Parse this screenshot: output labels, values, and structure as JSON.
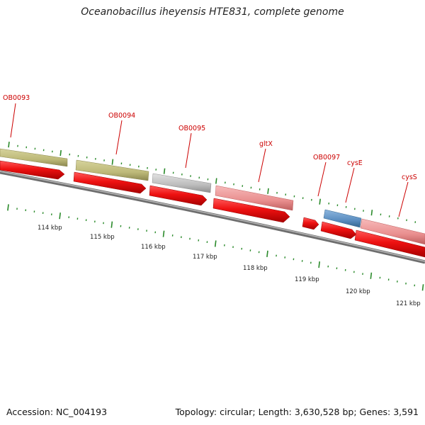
{
  "title": "Oceanobacillus iheyensis HTE831, complete genome",
  "footer": {
    "accession": "Accession: NC_004193",
    "summary": "Topology: circular; Length: 3,630,528 bp; Genes: 3,591"
  },
  "colors": {
    "backbone": "#8a8a8a",
    "cds_arrow": "#ee1111",
    "label": "#cc0000",
    "tick": "#2a8a2a",
    "olive": "#bdb978",
    "gray": "#bcbcbc",
    "pink": "#e98f8f",
    "blue": "#5a8dc0"
  },
  "ruler": {
    "labels": [
      "114 kbp",
      "115 kbp",
      "116 kbp",
      "117 kbp",
      "118 kbp",
      "119 kbp",
      "120 kbp",
      "121 kbp"
    ]
  },
  "genes": [
    {
      "label": "OB0093",
      "color": "olive"
    },
    {
      "label": "OB0094",
      "color": "olive"
    },
    {
      "label": "OB0095",
      "color": "gray"
    },
    {
      "label": "gltX",
      "color": "pink"
    },
    {
      "label": "OB0097",
      "color": "red"
    },
    {
      "label": "cysE",
      "color": "blue"
    },
    {
      "label": "cysS",
      "color": "pink"
    }
  ]
}
